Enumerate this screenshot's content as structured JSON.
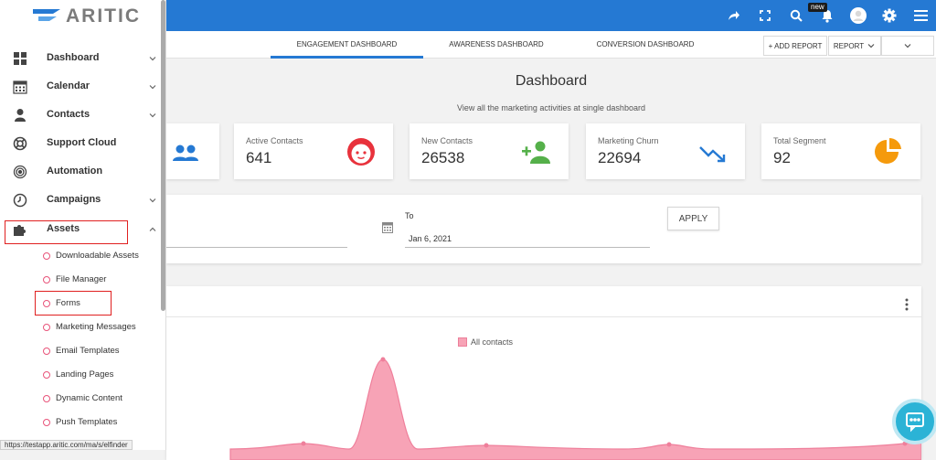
{
  "app": {
    "logo": "ARITIC"
  },
  "topbar": {
    "new_badge": "new"
  },
  "tabs": [
    {
      "label": "ENGAGEMENT DASHBOARD",
      "active": true
    },
    {
      "label": "AWARENESS DASHBOARD",
      "active": false
    },
    {
      "label": "CONVERSION DASHBOARD",
      "active": false
    }
  ],
  "toolbar": {
    "add_report_label": "+ ADD REPORT",
    "report_label": "REPORT"
  },
  "header": {
    "title": "Dashboard",
    "subtitle": "View all the marketing activities at single dashboard"
  },
  "cards": [
    {
      "label": "Active Contacts",
      "value": "641"
    },
    {
      "label": "New Contacts",
      "value": "26538"
    },
    {
      "label": "Marketing Churn",
      "value": "22694"
    },
    {
      "label": "Total Segment",
      "value": "92"
    }
  ],
  "filter": {
    "to_label": "To",
    "to_value": "Jan 6, 2021",
    "apply_label": "APPLY"
  },
  "chart": {
    "legend": "All contacts"
  },
  "sidebar": {
    "items": [
      {
        "label": "Dashboard"
      },
      {
        "label": "Calendar"
      },
      {
        "label": "Contacts"
      },
      {
        "label": "Support Cloud"
      },
      {
        "label": "Automation"
      },
      {
        "label": "Campaigns"
      },
      {
        "label": "Assets"
      }
    ],
    "sub_items": [
      {
        "label": "Downloadable Assets"
      },
      {
        "label": "File Manager"
      },
      {
        "label": "Forms"
      },
      {
        "label": "Marketing Messages"
      },
      {
        "label": "Email Templates"
      },
      {
        "label": "Landing Pages"
      },
      {
        "label": "Dynamic Content"
      },
      {
        "label": "Push Templates"
      }
    ]
  },
  "status": {
    "url": "https://testapp.aritic.com/ma/s/elfinder"
  },
  "colors": {
    "primary": "#2579d3",
    "accent_red": "#e8323c",
    "green": "#55b04a",
    "orange": "#f59a0c",
    "chart_pink": "#f7a3b6"
  }
}
